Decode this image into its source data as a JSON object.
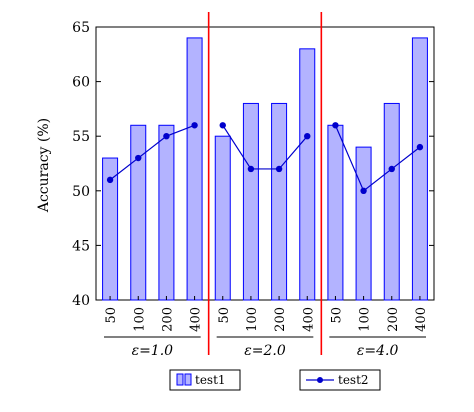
{
  "chart_data": {
    "type": "bar",
    "ylabel": "Accuracy (%)",
    "ylim": [
      40,
      65
    ],
    "yticks": [
      40,
      45,
      50,
      55,
      60,
      65
    ],
    "grid": false,
    "legend_placement": "bottom",
    "colors": {
      "bar_fill": "#b3b3ff",
      "bar_stroke": "#0000ff",
      "line": "#0000cc",
      "separator": "#ff0000"
    },
    "groups": [
      {
        "label": "ε=1.0",
        "categories": [
          "50",
          "100",
          "200",
          "400"
        ],
        "series": [
          {
            "name": "test1",
            "type": "bar",
            "values": [
              53,
              56,
              56,
              64
            ]
          },
          {
            "name": "test2",
            "type": "line",
            "values": [
              51,
              53,
              55,
              56
            ]
          }
        ]
      },
      {
        "label": "ε=2.0",
        "categories": [
          "50",
          "100",
          "200",
          "400"
        ],
        "series": [
          {
            "name": "test1",
            "type": "bar",
            "values": [
              55,
              58,
              58,
              63
            ]
          },
          {
            "name": "test2",
            "type": "line",
            "values": [
              56,
              52,
              52,
              55
            ]
          }
        ]
      },
      {
        "label": "ε=4.0",
        "categories": [
          "50",
          "100",
          "200",
          "400"
        ],
        "series": [
          {
            "name": "test1",
            "type": "bar",
            "values": [
              56,
              54,
              58,
              64
            ]
          },
          {
            "name": "test2",
            "type": "line",
            "values": [
              56,
              50,
              52,
              54
            ]
          }
        ]
      }
    ],
    "legend": [
      {
        "name": "test1",
        "marker": "bar"
      },
      {
        "name": "test2",
        "marker": "line-dot"
      }
    ]
  }
}
